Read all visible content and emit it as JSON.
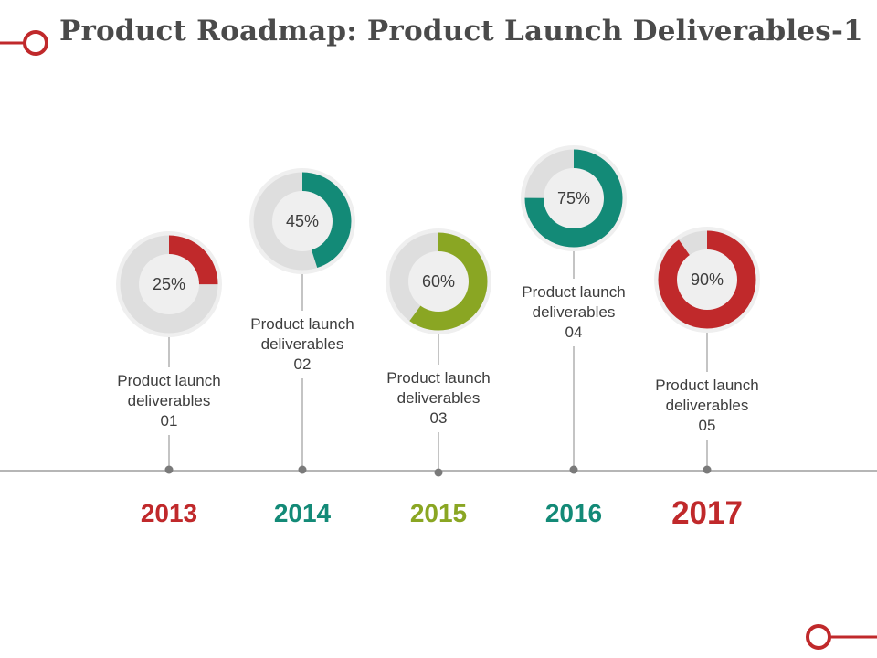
{
  "title": "Product Roadmap: Product Launch Deliverables-1",
  "colors": {
    "accent_red": "#c0292b",
    "teal": "#138a77",
    "olive": "#8aa623",
    "ring_track": "#dedede",
    "halo": "#efefef",
    "axis": "#8a8a8a",
    "text": "#3d3d3d"
  },
  "milestones": [
    {
      "year": "2013",
      "percent": 25,
      "percent_label": "25%",
      "label_line1": "Product launch",
      "label_line2": "deliverables",
      "label_line3": "01",
      "color": "#c0292b",
      "year_emphasis": false
    },
    {
      "year": "2014",
      "percent": 45,
      "percent_label": "45%",
      "label_line1": "Product launch",
      "label_line2": "deliverables",
      "label_line3": "02",
      "color": "#138a77",
      "year_emphasis": false
    },
    {
      "year": "2015",
      "percent": 60,
      "percent_label": "60%",
      "label_line1": "Product launch",
      "label_line2": "deliverables",
      "label_line3": "03",
      "color": "#8aa623",
      "year_emphasis": false
    },
    {
      "year": "2016",
      "percent": 75,
      "percent_label": "75%",
      "label_line1": "Product launch",
      "label_line2": "deliverables",
      "label_line3": "04",
      "color": "#138a77",
      "year_emphasis": false
    },
    {
      "year": "2017",
      "percent": 90,
      "percent_label": "90%",
      "label_line1": "Product launch",
      "label_line2": "deliverables",
      "label_line3": "05",
      "color": "#c0292b",
      "year_emphasis": true
    }
  ]
}
